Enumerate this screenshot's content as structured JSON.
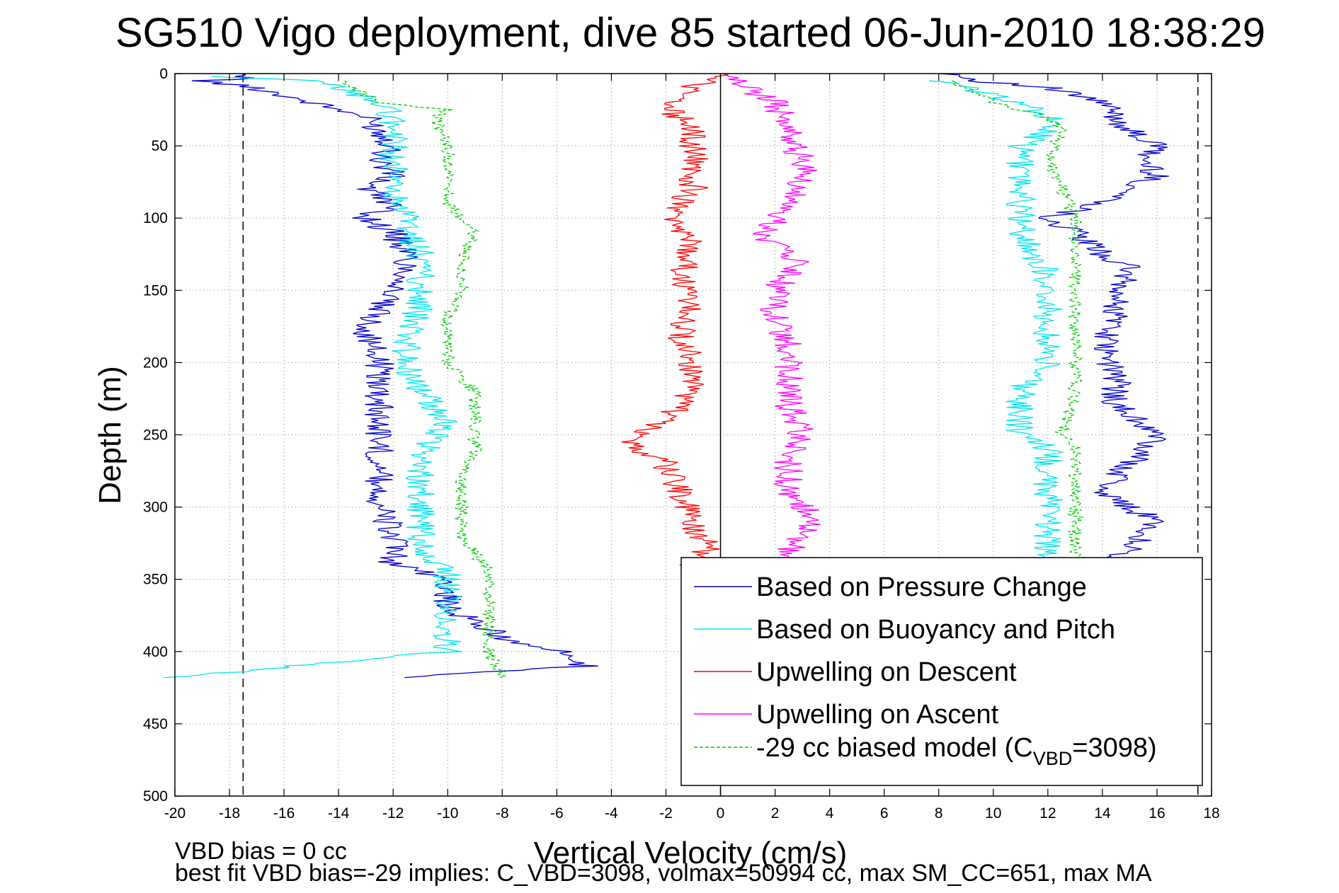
{
  "chart_data": {
    "type": "line",
    "title": "SG510 Vigo deployment, dive 85 started 06-Jun-2010 18:38:29",
    "xlabel": "Vertical Velocity (cm/s)",
    "ylabel": "Depth (m)",
    "xlim": [
      -20,
      18
    ],
    "ylim": [
      0,
      500
    ],
    "y_reversed": true,
    "grid": true,
    "xticks": [
      -20,
      -18,
      -16,
      -14,
      -12,
      -10,
      -8,
      -6,
      -4,
      -2,
      0,
      2,
      4,
      6,
      8,
      10,
      12,
      14,
      16,
      18
    ],
    "yticks": [
      0,
      50,
      100,
      150,
      200,
      250,
      300,
      350,
      400,
      450,
      500
    ],
    "legend_position": "bottom-right",
    "reference_lines": [
      {
        "x": -17.5,
        "style": "dashed",
        "color": "#000000"
      },
      {
        "x": 0,
        "style": "solid",
        "color": "#000000"
      },
      {
        "x": 17.5,
        "style": "dashed",
        "color": "#000000"
      }
    ],
    "series": [
      {
        "name": "Based on Pressure Change",
        "color": "#0000cc",
        "style": "solid",
        "segments": [
          {
            "depth": [
              0,
              3,
              5,
              10,
              20,
              30,
              40,
              50,
              60,
              70,
              80,
              90,
              100,
              110,
              125,
              140,
              160,
              180,
              200,
              220,
              240,
              260,
              280,
              300,
              320,
              340,
              350,
              370,
              390,
              400,
              410,
              418
            ],
            "velocity": [
              -18,
              -17,
              -19,
              -17,
              -15,
              -13,
              -12.5,
              -12,
              -12.5,
              -12,
              -13,
              -12,
              -13,
              -12,
              -11.5,
              -11.5,
              -12.5,
              -13,
              -12.5,
              -12.5,
              -12.5,
              -12.5,
              -12.5,
              -12.5,
              -12,
              -12,
              -10,
              -10,
              -8,
              -6,
              -5,
              -12
            ]
          },
          {
            "depth": [
              0,
              5,
              10,
              20,
              30,
              40,
              50,
              60,
              70,
              80,
              90,
              100,
              110,
              125,
              135,
              150,
              170,
              190,
              210,
              230,
              250,
              270,
              290,
              310,
              330,
              340
            ],
            "velocity": [
              8.5,
              9.5,
              12,
              14,
              14.5,
              15,
              16,
              15.5,
              16,
              15,
              14,
              12,
              13,
              14,
              15,
              14.5,
              14.5,
              14,
              14.5,
              14.5,
              16,
              15,
              14,
              16,
              15,
              14
            ]
          }
        ]
      },
      {
        "name": "Based on Buoyancy and Pitch",
        "color": "#00e5ee",
        "style": "solid",
        "segments": [
          {
            "depth": [
              2,
              5,
              10,
              20,
              30,
              40,
              50,
              70,
              90,
              100,
              110,
              125,
              140,
              160,
              180,
              200,
              220,
              240,
              250,
              270,
              290,
              310,
              330,
              345,
              360,
              380,
              400,
              418
            ],
            "velocity": [
              -19,
              -15,
              -14,
              -12.5,
              -12,
              -12,
              -12,
              -12,
              -12,
              -11.5,
              -11.5,
              -11,
              -11,
              -11,
              -11.5,
              -11.5,
              -11,
              -10,
              -10.5,
              -11,
              -11,
              -11,
              -11,
              -10,
              -10,
              -10,
              -10,
              -20
            ]
          },
          {
            "depth": [
              5,
              10,
              20,
              30,
              40,
              50,
              70,
              90,
              100,
              110,
              125,
              140,
              160,
              180,
              200,
              220,
              240,
              250,
              260,
              280,
              300,
              320,
              340
            ],
            "velocity": [
              8,
              9,
              11,
              12,
              12,
              11,
              11,
              11,
              11,
              11,
              11.5,
              12,
              12,
              12,
              12,
              11,
              11,
              11,
              12,
              12,
              12,
              12,
              12
            ]
          }
        ]
      },
      {
        "name": "Upwelling on Descent",
        "color": "#ff0000",
        "style": "solid",
        "segments": [
          {
            "depth": [
              0,
              20,
              40,
              60,
              80,
              100,
              120,
              140,
              160,
              180,
              200,
              220,
              240,
              256,
              270,
              290,
              310,
              330,
              340
            ],
            "velocity": [
              0,
              -2,
              -1,
              -1,
              -1,
              -2,
              -1,
              -1.5,
              -1,
              -1.5,
              -1,
              -1,
              -2,
              -3.5,
              -2,
              -1.5,
              -1,
              -0.5,
              -1
            ]
          }
        ]
      },
      {
        "name": "Upwelling on Ascent",
        "color": "#ff00ff",
        "style": "solid",
        "segments": [
          {
            "depth": [
              0,
              20,
              40,
              60,
              80,
              100,
              115,
              130,
              150,
              170,
              190,
              210,
              230,
              250,
              270,
              290,
              310,
              330,
              340
            ],
            "velocity": [
              0,
              2,
              2.5,
              3,
              3,
              2,
              1.5,
              3,
              2,
              2,
              2.5,
              2.5,
              2.5,
              3,
              2.5,
              2.5,
              3.5,
              2.5,
              2.5
            ]
          }
        ]
      },
      {
        "name": "-29 cc biased model (C_VBD=3098)",
        "legend_label": "-29 cc biased model (C",
        "legend_subscript": "VBD",
        "legend_suffix": "=3098)",
        "color": "#00cc00",
        "style": "dashed",
        "segments": [
          {
            "depth": [
              5,
              10,
              20,
              25,
              30,
              50,
              70,
              90,
              110,
              130,
              150,
              170,
              200,
              220,
              240,
              260,
              280,
              300,
              320,
              345,
              360,
              380,
              400,
              418
            ],
            "velocity": [
              -14,
              -13.5,
              -12.5,
              -10,
              -10.5,
              -10,
              -10,
              -10,
              -9,
              -9.5,
              -9.5,
              -10,
              -10,
              -9,
              -9,
              -9,
              -9.5,
              -9.5,
              -9.5,
              -8.5,
              -8.5,
              -8.5,
              -8.5,
              -8
            ]
          },
          {
            "depth": [
              5,
              10,
              20,
              30,
              40,
              60,
              80,
              100,
              120,
              135,
              150,
              180,
              220,
              250,
              260,
              280,
              300,
              320,
              340
            ],
            "velocity": [
              8.5,
              9,
              10,
              12,
              12.5,
              12,
              12.5,
              13,
              13,
              13,
              13,
              13,
              13,
              12.5,
              13,
              13,
              13,
              13,
              13
            ]
          }
        ]
      }
    ],
    "annotations": [
      "VBD bias = 0 cc",
      "best fit VBD bias=-29 implies: C_VBD=3098, volmax=50994 cc, max SM_CC=651, max MA"
    ]
  }
}
